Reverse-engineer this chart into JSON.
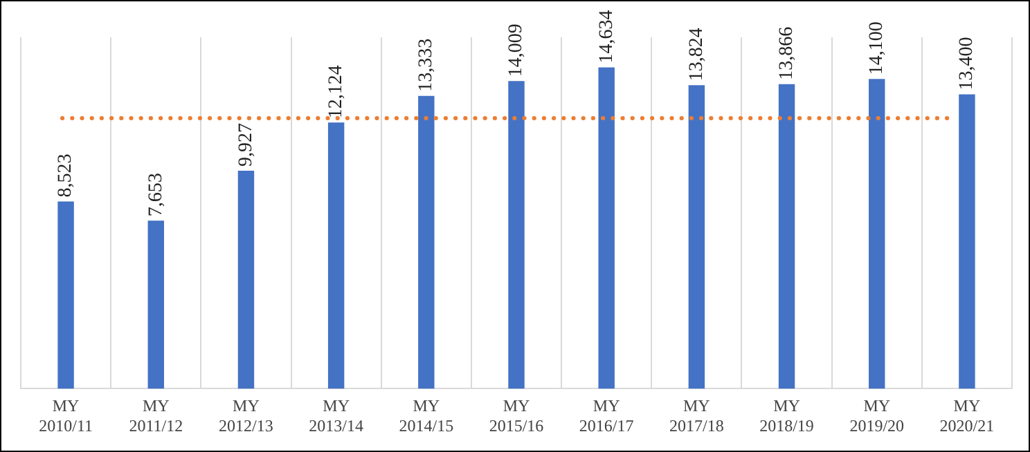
{
  "chart_data": {
    "type": "bar",
    "categories": [
      "MY 2010/11",
      "MY 2011/12",
      "MY 2012/13",
      "MY 2013/14",
      "MY 2014/15",
      "MY 2015/16",
      "MY 2016/17",
      "MY 2017/18",
      "MY 2018/19",
      "MY 2019/20",
      "MY 2020/21"
    ],
    "values": [
      8523,
      7653,
      9927,
      12124,
      13333,
      14009,
      14634,
      13824,
      13866,
      14100,
      13400
    ],
    "value_labels": [
      "8,523",
      "7,653",
      "9,927",
      "12,124",
      "13,333",
      "14,009",
      "14,634",
      "13,824",
      "13,866",
      "14,100",
      "13,400"
    ],
    "color": "#4472c4",
    "ylim": [
      0,
      16000
    ],
    "tick_labels": "x",
    "grid": "x",
    "ref_lines": [
      {
        "axis": "y",
        "value": 12320,
        "color": "#ed7d31",
        "line_style": "dotted"
      }
    ]
  }
}
